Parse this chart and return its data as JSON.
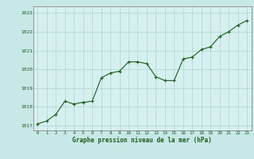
{
  "x": [
    0,
    1,
    2,
    3,
    4,
    5,
    6,
    7,
    8,
    9,
    10,
    11,
    12,
    13,
    14,
    15,
    16,
    17,
    18,
    19,
    20,
    21,
    22,
    23
  ],
  "y": [
    1017.1,
    1017.25,
    1017.6,
    1018.3,
    1018.15,
    1018.25,
    1018.3,
    1019.55,
    1019.8,
    1019.9,
    1020.4,
    1020.4,
    1020.3,
    1019.6,
    1019.4,
    1019.4,
    1020.55,
    1020.65,
    1021.05,
    1021.2,
    1021.75,
    1022.0,
    1022.35,
    1022.6
  ],
  "ylim": [
    1016.75,
    1023.35
  ],
  "yticks": [
    1017,
    1018,
    1019,
    1020,
    1021,
    1022,
    1023
  ],
  "xlim": [
    -0.5,
    23.5
  ],
  "xticks": [
    0,
    1,
    2,
    3,
    4,
    5,
    6,
    7,
    8,
    9,
    10,
    11,
    12,
    13,
    14,
    15,
    16,
    17,
    18,
    19,
    20,
    21,
    22,
    23
  ],
  "line_color": "#1a5c1a",
  "marker_color": "#1a5c1a",
  "bg_color": "#d6efef",
  "grid_color": "#aed4d4",
  "xlabel": "Graphe pression niveau de la mer (hPa)",
  "xlabel_color": "#1a5c1a",
  "tick_color": "#1a5c1a",
  "axis_color": "#888888",
  "outer_bg": "#c8e8e8"
}
